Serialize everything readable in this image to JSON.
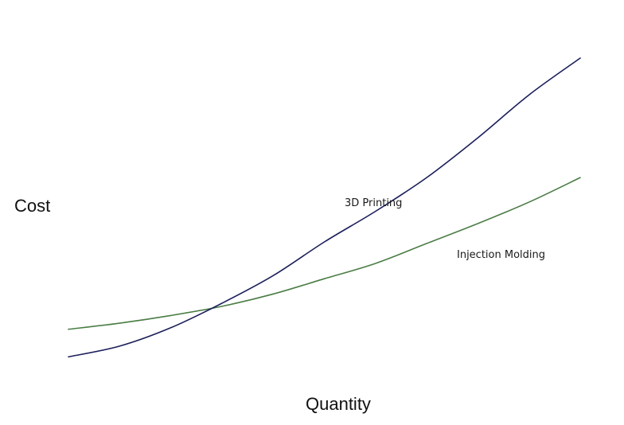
{
  "chart_data": {
    "type": "line",
    "xlabel": "Quantity",
    "ylabel": "Cost",
    "grid": false,
    "legend": "none",
    "x": [
      0,
      1,
      2,
      3,
      4,
      5,
      6,
      7,
      8,
      9,
      10
    ],
    "xlim": [
      0,
      10
    ],
    "ylim": [
      0,
      10
    ],
    "series": [
      {
        "name": "3D Printing",
        "color": "#1b1f5a",
        "values": [
          0.25,
          0.6,
          1.2,
          2.0,
          2.9,
          4.0,
          5.0,
          6.1,
          7.4,
          8.8,
          10.0
        ]
      },
      {
        "name": "Injection Molding",
        "color": "#4a7d45",
        "values": [
          1.15,
          1.35,
          1.6,
          1.9,
          2.3,
          2.8,
          3.3,
          3.95,
          4.6,
          5.3,
          6.1
        ]
      }
    ]
  }
}
